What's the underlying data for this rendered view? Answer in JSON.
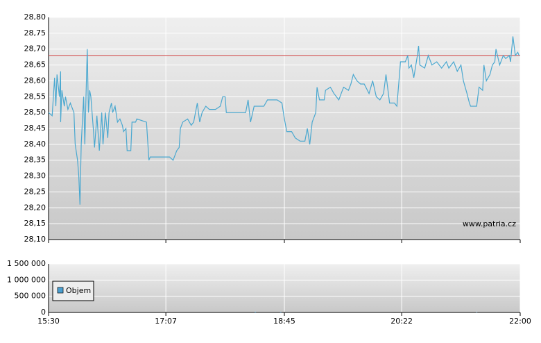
{
  "chart_data": [
    {
      "type": "line",
      "color": "#4aa8d0",
      "watermark": "www.patria.cz",
      "reference_line": 28.68,
      "reference_color": "#d04040",
      "grid": true,
      "x": [
        0,
        3,
        5,
        6,
        7,
        9,
        10,
        10,
        11,
        13,
        14,
        16,
        18,
        21,
        22,
        24,
        25,
        26,
        27,
        29,
        30,
        31,
        32,
        33,
        34,
        35,
        37,
        38,
        40,
        42,
        44,
        45,
        47,
        49,
        50,
        52,
        53,
        55,
        57,
        59,
        61,
        62,
        64,
        65,
        68,
        69,
        72,
        73,
        81,
        83,
        84,
        100,
        103,
        106,
        108,
        109,
        111,
        115,
        118,
        120,
        123,
        125,
        127,
        130,
        133,
        138,
        142,
        144,
        146,
        147,
        152,
        163,
        165,
        167,
        170,
        173,
        178,
        181,
        186,
        189,
        193,
        195,
        197,
        201,
        204,
        208,
        212,
        214,
        216,
        218,
        221,
        222,
        224,
        228,
        229,
        233,
        236,
        240,
        242,
        244,
        248,
        250,
        252,
        255,
        258,
        261,
        265,
        268,
        271,
        274,
        277,
        279,
        282,
        286,
        288,
        290,
        291,
        295,
        297,
        298,
        300,
        302,
        305,
        306,
        307,
        311,
        314,
        317,
        321,
        325,
        329,
        331,
        335,
        338,
        341,
        343,
        346,
        348,
        349,
        354,
        356,
        359,
        360,
        362,
        365,
        367,
        369,
        370,
        373,
        376,
        378,
        381,
        382,
        384,
        386,
        388,
        389
      ],
      "values": [
        28.5,
        28.49,
        28.61,
        28.52,
        28.62,
        28.55,
        28.63,
        28.47,
        28.57,
        28.52,
        28.55,
        28.51,
        28.53,
        28.5,
        28.4,
        28.35,
        28.3,
        28.21,
        28.4,
        28.55,
        28.4,
        28.56,
        28.7,
        28.5,
        28.57,
        28.55,
        28.45,
        28.39,
        28.49,
        28.38,
        28.5,
        28.4,
        28.5,
        28.42,
        28.5,
        28.53,
        28.5,
        28.52,
        28.47,
        28.48,
        28.46,
        28.44,
        28.45,
        28.38,
        28.38,
        28.47,
        28.47,
        28.48,
        28.47,
        28.35,
        28.36,
        28.36,
        28.35,
        28.38,
        28.39,
        28.45,
        28.47,
        28.48,
        28.46,
        28.47,
        28.53,
        28.47,
        28.5,
        28.52,
        28.51,
        28.51,
        28.52,
        28.55,
        28.55,
        28.5,
        28.5,
        28.5,
        28.54,
        28.47,
        28.52,
        28.52,
        28.52,
        28.54,
        28.54,
        28.54,
        28.53,
        28.48,
        28.44,
        28.44,
        28.42,
        28.41,
        28.41,
        28.45,
        28.4,
        28.47,
        28.5,
        28.58,
        28.54,
        28.54,
        28.57,
        28.58,
        28.56,
        28.54,
        28.56,
        28.58,
        28.57,
        28.59,
        28.62,
        28.6,
        28.59,
        28.59,
        28.56,
        28.6,
        28.55,
        28.54,
        28.56,
        28.62,
        28.53,
        28.53,
        28.52,
        28.61,
        28.66,
        28.66,
        28.68,
        28.64,
        28.65,
        28.61,
        28.68,
        28.71,
        28.65,
        28.64,
        28.68,
        28.65,
        28.66,
        28.64,
        28.66,
        28.64,
        28.66,
        28.63,
        28.65,
        28.6,
        28.56,
        28.53,
        28.52,
        28.52,
        28.58,
        28.57,
        28.65,
        28.6,
        28.62,
        28.65,
        28.66,
        28.7,
        28.65,
        28.68,
        28.67,
        28.68,
        28.66,
        28.74,
        28.68,
        28.69,
        28.68
      ],
      "xlim": [
        0,
        390
      ],
      "xticks": [
        {
          "value": 0,
          "label": "15:30"
        },
        {
          "value": 97,
          "label": "17:07"
        },
        {
          "value": 195,
          "label": "18:45"
        },
        {
          "value": 292,
          "label": "20:22"
        },
        {
          "value": 390,
          "label": "22:00"
        }
      ],
      "ylim": [
        28.1,
        28.8
      ],
      "yticks": [
        {
          "value": 28.1,
          "label": "28,10"
        },
        {
          "value": 28.15,
          "label": "28,15"
        },
        {
          "value": 28.2,
          "label": "28,20"
        },
        {
          "value": 28.25,
          "label": "28,25"
        },
        {
          "value": 28.3,
          "label": "28,30"
        },
        {
          "value": 28.35,
          "label": "28,35"
        },
        {
          "value": 28.4,
          "label": "28,40"
        },
        {
          "value": 28.45,
          "label": "28,45"
        },
        {
          "value": 28.5,
          "label": "28,50"
        },
        {
          "value": 28.55,
          "label": "28,55"
        },
        {
          "value": 28.6,
          "label": "28,60"
        },
        {
          "value": 28.65,
          "label": "28,65"
        },
        {
          "value": 28.7,
          "label": "28,70"
        },
        {
          "value": 28.75,
          "label": "28,75"
        },
        {
          "value": 28.8,
          "label": "28,80"
        }
      ]
    },
    {
      "type": "bar",
      "grid": true,
      "series": [
        {
          "name": "Objem",
          "color": "#4a9fd0",
          "x": [
            171,
            192,
            354
          ],
          "values": [
            20000,
            15000,
            10000
          ]
        }
      ],
      "xlim": [
        0,
        390
      ],
      "xticks": [
        {
          "value": 0,
          "label": "15:30"
        },
        {
          "value": 97,
          "label": "17:07"
        },
        {
          "value": 195,
          "label": "18:45"
        },
        {
          "value": 292,
          "label": "20:22"
        },
        {
          "value": 390,
          "label": "22:00"
        }
      ],
      "ylim": [
        0,
        1500000
      ],
      "yticks": [
        0,
        {
          "value": 500000,
          "label": "500 000"
        },
        {
          "value": 1000000,
          "label": "1 000 000"
        },
        {
          "value": 1500000,
          "label": "1 500 000"
        }
      ]
    }
  ]
}
